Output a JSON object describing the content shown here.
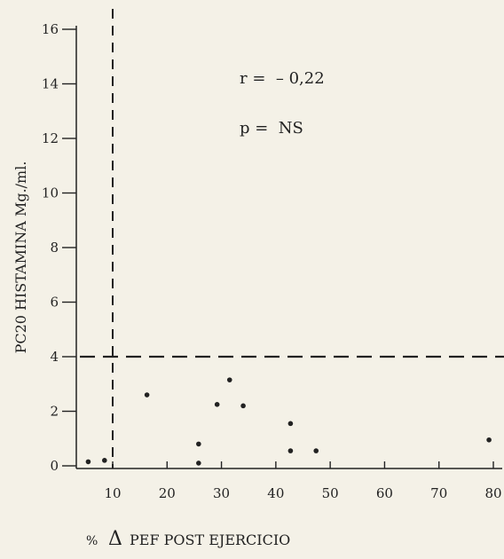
{
  "chart_data": {
    "type": "scatter",
    "title": "",
    "xlabel": "PEF POST EJERCICIO",
    "xlabel_prefix": "%",
    "xlabel_symbol": "Δ",
    "ylabel": "PC20 HISTAMINA Mg./ml.",
    "xlim": [
      3,
      80
    ],
    "ylim": [
      0,
      16
    ],
    "x_ticks": [
      10,
      20,
      30,
      40,
      50,
      60,
      70,
      80
    ],
    "x_tick_labels": [
      "10",
      "20",
      "30",
      "40",
      "50",
      "60",
      "70",
      "80"
    ],
    "y_ticks": [
      0,
      2,
      4,
      6,
      8,
      10,
      12,
      14,
      16
    ],
    "y_tick_labels": [
      "0",
      "2",
      "4",
      "6",
      "8",
      "10",
      "12",
      "14",
      "16"
    ],
    "reference_lines": {
      "x": 10,
      "y": 4
    },
    "annotations": [
      {
        "text": "r =  – 0,22"
      },
      {
        "text": "p =  NS"
      }
    ],
    "points": [
      {
        "x": 5.5,
        "y": 0.15
      },
      {
        "x": 8.5,
        "y": 0.2
      },
      {
        "x": 16.3,
        "y": 2.6
      },
      {
        "x": 25.8,
        "y": 0.8
      },
      {
        "x": 25.8,
        "y": 0.1
      },
      {
        "x": 29.2,
        "y": 2.25
      },
      {
        "x": 31.5,
        "y": 3.15
      },
      {
        "x": 34.0,
        "y": 2.2
      },
      {
        "x": 42.7,
        "y": 1.55
      },
      {
        "x": 42.7,
        "y": 0.55
      },
      {
        "x": 47.4,
        "y": 0.55
      },
      {
        "x": 79.2,
        "y": 0.95
      }
    ]
  }
}
